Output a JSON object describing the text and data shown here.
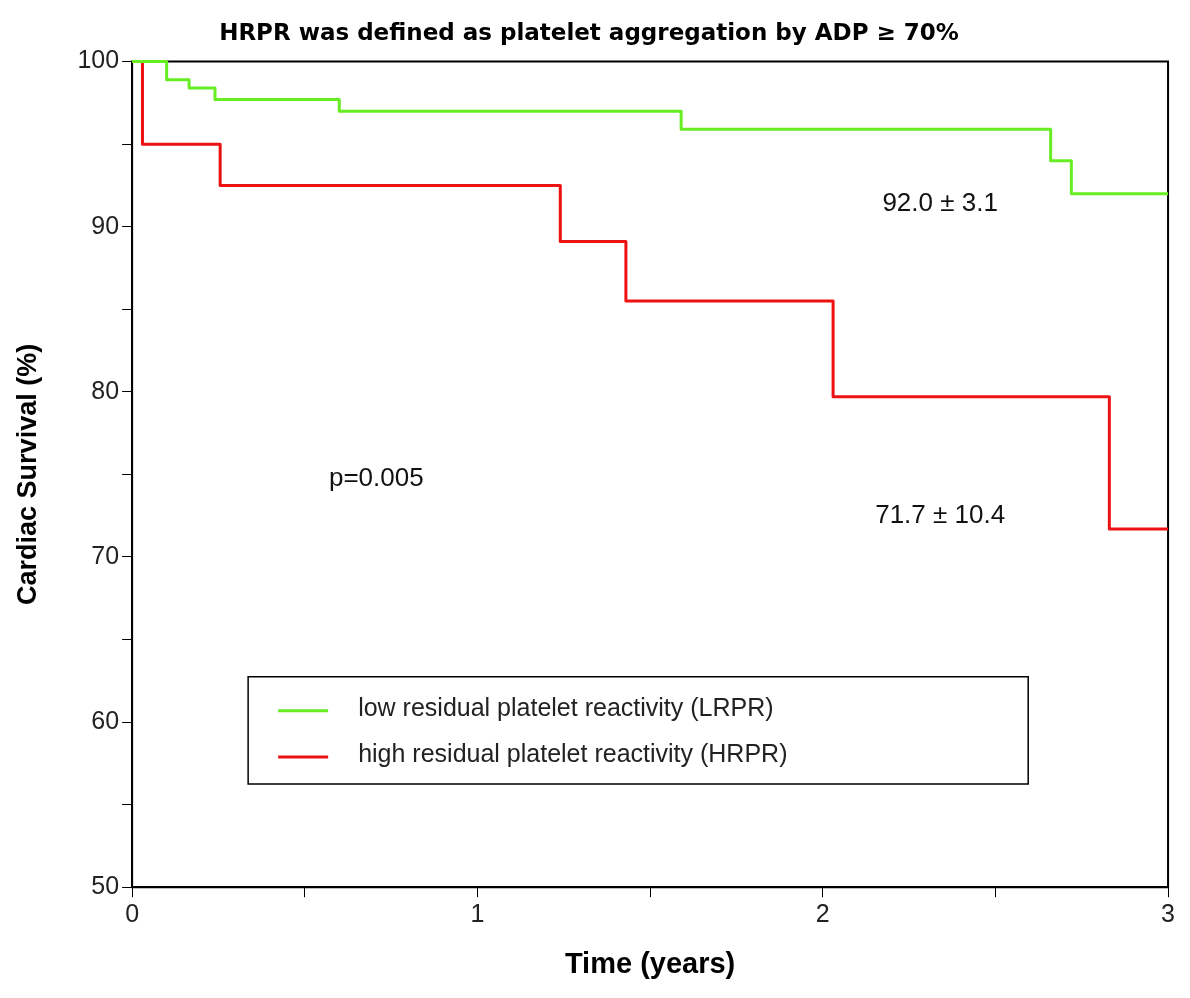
{
  "chart_data": {
    "type": "step",
    "title": "HRPR was defined as platelet aggregation by ADP ≥ 70%",
    "xlabel": "Time (years)",
    "ylabel": "Cardiac Survival (%)",
    "xlim": [
      0,
      3
    ],
    "xticks": [
      0,
      {
        "value": 0.5,
        "label": null
      },
      1,
      {
        "value": 1.5,
        "label": null
      },
      2,
      {
        "value": 2.5,
        "label": null
      },
      3
    ],
    "ylim": [
      50,
      100
    ],
    "yticks": [
      50,
      {
        "value": 55,
        "label": null
      },
      60,
      {
        "value": 65,
        "label": null
      },
      70,
      {
        "value": 75,
        "label": null
      },
      80,
      {
        "value": 85,
        "label": null
      },
      90,
      {
        "value": 95,
        "label": null
      },
      100
    ],
    "grid": false,
    "legend": "bottom",
    "marker": "none",
    "line_style": "solid",
    "series": [
      {
        "name": "low residual platelet reactivity (LRPR)",
        "color": "#66ee22",
        "x": [
          0,
          0.1,
          0.165,
          0.24,
          0.6,
          1.59,
          2.66,
          2.72,
          3
        ],
        "values": [
          100,
          98.9,
          98.4,
          97.7,
          97.0,
          95.9,
          94.0,
          92.0,
          92.0
        ]
      },
      {
        "name": "high residual platelet reactivity (HRPR)",
        "color": "#ee1111",
        "x": [
          0,
          0.03,
          0.255,
          1.24,
          1.43,
          2.03,
          2.83,
          3
        ],
        "values": [
          100,
          95.0,
          92.5,
          89.1,
          85.5,
          79.7,
          71.7,
          71.7
        ]
      }
    ],
    "annotations": [
      "92.0 ± 3.1",
      "71.7 ± 10.4",
      "p=0.005"
    ]
  }
}
